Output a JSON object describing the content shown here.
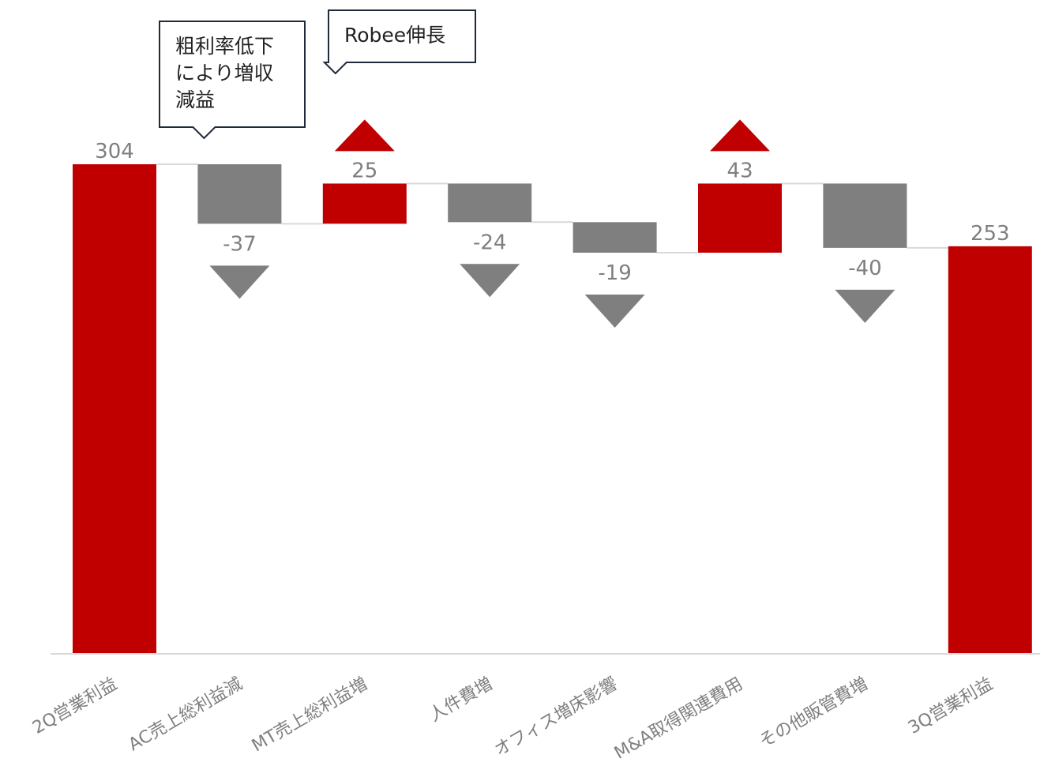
{
  "chart_data": {
    "type": "waterfall",
    "title": "",
    "xlabel": "",
    "ylabel": "",
    "ylim": [
      0,
      304
    ],
    "grid": false,
    "legend": "none",
    "categories": [
      "2Q営業利益",
      "AC売上総利益減",
      "MT売上総利益増",
      "人件費増",
      "オフィス増床影響",
      "M&A取得関連費用",
      "その他販管費増",
      "3Q営業利益"
    ],
    "values": [
      304,
      -37,
      25,
      -24,
      -19,
      43,
      -40,
      253
    ],
    "value_labels": [
      "304",
      "-37",
      "25",
      "-24",
      "-19",
      "43",
      "-40",
      "253"
    ],
    "kinds": [
      "total",
      "delta",
      "delta",
      "delta",
      "delta",
      "delta",
      "delta",
      "total"
    ],
    "callouts": [
      {
        "category_index": 1,
        "lines": [
          "粗利率低下",
          "により増収",
          "減益"
        ]
      },
      {
        "category_index": 2,
        "lines": [
          "Robee伸長"
        ]
      }
    ],
    "colors": {
      "total": "#c00000",
      "increase": "#c00000",
      "decrease": "#7f7f7f",
      "label": "#7f7f7f",
      "axis": "#d9d9d9",
      "connector": "#d9d9d9",
      "callout_border": "#1f2a3a"
    }
  }
}
